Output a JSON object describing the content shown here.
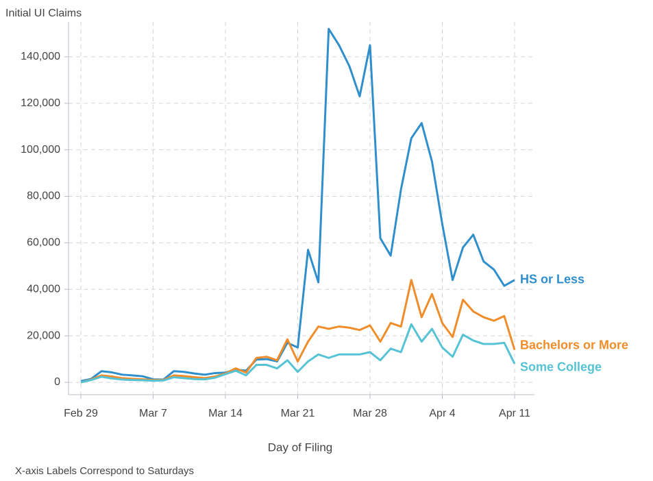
{
  "chart_data": {
    "type": "line",
    "title": "Initial UI Claims",
    "xlabel": "Day of Filing",
    "note": "X-axis Labels Correspond to Saturdays",
    "categories": [
      "Feb 29",
      null,
      null,
      null,
      null,
      null,
      null,
      "Mar 7",
      null,
      null,
      null,
      null,
      null,
      null,
      "Mar 14",
      null,
      null,
      null,
      null,
      null,
      null,
      "Mar 21",
      null,
      null,
      null,
      null,
      null,
      null,
      "Mar 28",
      null,
      null,
      null,
      null,
      null,
      null,
      "Apr 4",
      null,
      null,
      null,
      null,
      null,
      null,
      "Apr 11"
    ],
    "series": [
      {
        "name": "HS or Less",
        "color": "#2f8fcc",
        "values": [
          500,
          1500,
          4800,
          4300,
          3300,
          3000,
          2600,
          1300,
          1200,
          4800,
          4500,
          3800,
          3300,
          4000,
          4200,
          5500,
          5000,
          9800,
          10000,
          9000,
          17000,
          15000,
          57000,
          43000,
          152000,
          145000,
          136000,
          123000,
          145000,
          62000,
          54500,
          83000,
          105000,
          111500,
          95000,
          68000,
          44000,
          58000,
          63500,
          52000,
          48500,
          41500,
          44000
        ]
      },
      {
        "name": "Bachelors or More",
        "color": "#f08d2a",
        "values": [
          0,
          1200,
          3000,
          2500,
          1800,
          1500,
          1300,
          1000,
          1000,
          3000,
          2700,
          2200,
          1800,
          2500,
          3800,
          6000,
          4200,
          10500,
          11000,
          9500,
          18500,
          9000,
          17500,
          24000,
          23000,
          24000,
          23500,
          22500,
          24500,
          17500,
          25500,
          24000,
          44000,
          28000,
          38000,
          25500,
          19500,
          35500,
          30500,
          28000,
          26500,
          28500,
          14000
        ]
      },
      {
        "name": "Some College",
        "color": "#55c3d3",
        "values": [
          0,
          1000,
          2400,
          1700,
          1200,
          1000,
          900,
          700,
          800,
          2200,
          1800,
          1400,
          1300,
          2000,
          3500,
          5000,
          3000,
          7500,
          7500,
          6000,
          9500,
          4500,
          9000,
          12000,
          10500,
          12000,
          12000,
          12000,
          13000,
          9500,
          14500,
          13000,
          25000,
          17500,
          23000,
          15000,
          11000,
          20500,
          18000,
          16500,
          16500,
          17000,
          8000
        ]
      }
    ],
    "ylim": [
      -5300,
      155000
    ],
    "yticks": [
      0,
      {
        "value": 20000,
        "label": "20,000"
      },
      {
        "value": 40000,
        "label": "40,000"
      },
      {
        "value": 60000,
        "label": "60,000"
      },
      {
        "value": 80000,
        "label": "80,000"
      },
      {
        "value": 100000,
        "label": "100,000"
      },
      {
        "value": 120000,
        "label": "120,000"
      },
      {
        "value": 140000,
        "label": "140,000"
      }
    ],
    "grid": true
  }
}
